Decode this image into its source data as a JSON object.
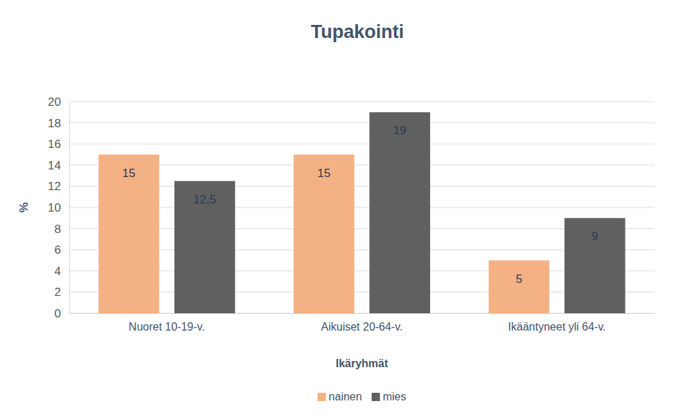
{
  "chart_data": {
    "type": "bar",
    "title": "Tupakointi",
    "x_label": "Ikäryhmät",
    "y_label": "%",
    "categories": [
      "Nuoret 10-19-v.",
      "Aikuiset 20-64-v.",
      "Ikääntyneet yli 64-v."
    ],
    "series": [
      {
        "name": "nainen",
        "color": "#f4b183",
        "values": [
          15,
          15,
          5
        ],
        "value_labels": [
          "15",
          "15",
          "5"
        ]
      },
      {
        "name": "mies",
        "color": "#606060",
        "values": [
          12.5,
          19,
          9
        ],
        "value_labels": [
          "12,5",
          "19",
          "9"
        ]
      }
    ],
    "ylim": [
      0,
      20
    ],
    "yticks": [
      0,
      2,
      4,
      6,
      8,
      10,
      12,
      14,
      16,
      18,
      20
    ],
    "grid": true,
    "legend": "bottom",
    "data_labels": true
  }
}
